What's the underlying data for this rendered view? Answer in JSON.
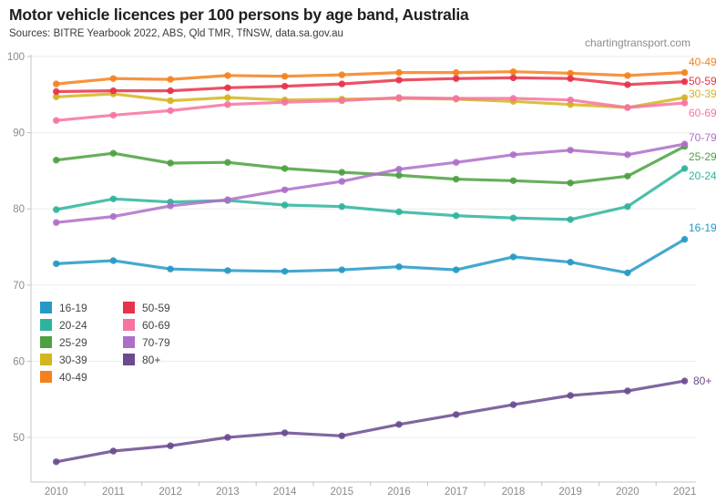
{
  "header": {
    "title": "Motor vehicle licences per 100 persons by age band, Australia",
    "sources": "Sources: BITRE Yearbook 2022, ABS, Qld TMR, TfNSW, data.sa.gov.au",
    "watermark": "chartingtransport.com"
  },
  "chart_data": {
    "type": "line",
    "title": "Motor vehicle licences per 100 persons by age band, Australia",
    "xlabel": "",
    "ylabel": "",
    "x": [
      2010,
      2011,
      2012,
      2013,
      2014,
      2015,
      2016,
      2017,
      2018,
      2019,
      2020,
      2021
    ],
    "yticks": [
      50,
      60,
      70,
      80,
      90,
      100
    ],
    "ylim": [
      44,
      100.5
    ],
    "grid": true,
    "legend_position": "inside-middle-left",
    "series": [
      {
        "name": "16-19",
        "color": "#2499C6",
        "values": [
          72.8,
          73.2,
          72.1,
          71.9,
          71.8,
          72.0,
          72.4,
          72.0,
          73.7,
          73.0,
          71.6,
          76.0
        ]
      },
      {
        "name": "20-24",
        "color": "#2EB49C",
        "values": [
          79.9,
          81.3,
          80.9,
          81.1,
          80.5,
          80.3,
          79.6,
          79.1,
          78.8,
          78.6,
          80.3,
          85.3
        ]
      },
      {
        "name": "25-29",
        "color": "#4CA140",
        "values": [
          86.4,
          87.3,
          86.0,
          86.1,
          85.3,
          84.8,
          84.4,
          83.9,
          83.7,
          83.4,
          84.3,
          88.2
        ]
      },
      {
        "name": "30-39",
        "color": "#D3B51E",
        "values": [
          94.7,
          95.1,
          94.2,
          94.6,
          94.3,
          94.4,
          94.5,
          94.4,
          94.1,
          93.7,
          93.3,
          94.6
        ]
      },
      {
        "name": "40-49",
        "color": "#F5811D",
        "values": [
          96.4,
          97.1,
          97.0,
          97.5,
          97.4,
          97.6,
          97.9,
          97.9,
          98.0,
          97.8,
          97.5,
          97.9
        ]
      },
      {
        "name": "50-59",
        "color": "#E73249",
        "values": [
          95.4,
          95.5,
          95.5,
          95.9,
          96.1,
          96.4,
          96.9,
          97.1,
          97.2,
          97.1,
          96.3,
          96.7
        ]
      },
      {
        "name": "60-69",
        "color": "#F673A2",
        "values": [
          91.6,
          92.3,
          92.9,
          93.7,
          94.0,
          94.2,
          94.6,
          94.5,
          94.5,
          94.3,
          93.3,
          93.9
        ]
      },
      {
        "name": "70-79",
        "color": "#AE6EC9",
        "values": [
          78.2,
          79.0,
          80.4,
          81.2,
          82.5,
          83.6,
          85.2,
          86.1,
          87.1,
          87.7,
          87.1,
          88.5
        ]
      },
      {
        "name": "80+",
        "color": "#6A4B8F",
        "values": [
          46.8,
          48.2,
          48.9,
          50.0,
          50.6,
          50.2,
          51.7,
          53.0,
          54.3,
          55.5,
          56.1,
          57.4
        ]
      }
    ]
  },
  "colors": {
    "grid": "#ececec",
    "axis": "#c4c4c4",
    "tick": "#c4c4c4",
    "axis_label": "#8a8a8a",
    "title": "#1e1e1e",
    "sources": "#3a3a3a",
    "watermark": "#8c8c8c",
    "legend_label": "#444444",
    "background": "#ffffff"
  }
}
